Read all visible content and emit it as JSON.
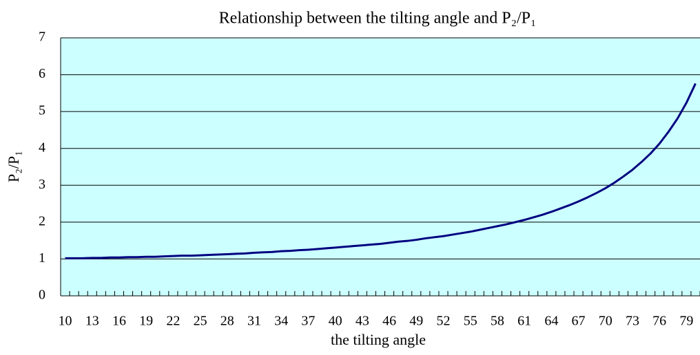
{
  "chart_data": {
    "type": "line",
    "title": "Relationship between the tilting angle and P₂/P₁",
    "x_label": "the tilting angle",
    "y_label": "P₂/P₁",
    "categories": [
      "10",
      null,
      null,
      "13",
      null,
      null,
      "16",
      null,
      null,
      "19",
      null,
      null,
      "22",
      null,
      null,
      "25",
      null,
      null,
      "28",
      null,
      null,
      "31",
      null,
      null,
      "34",
      null,
      null,
      "37",
      null,
      null,
      "40",
      null,
      null,
      "43",
      null,
      null,
      "46",
      null,
      null,
      "49",
      null,
      null,
      "52",
      null,
      null,
      "55",
      null,
      null,
      "58",
      null,
      null,
      "61",
      null,
      null,
      "64",
      null,
      null,
      "67",
      null,
      null,
      "70",
      null,
      null,
      "73",
      null,
      null,
      "76",
      null,
      null,
      "79",
      null
    ],
    "series": [
      {
        "name": "P₂/P₁",
        "color": "#000080",
        "values": [
          1.02,
          1.02,
          1.02,
          1.03,
          1.03,
          1.04,
          1.04,
          1.05,
          1.05,
          1.06,
          1.06,
          1.07,
          1.08,
          1.09,
          1.09,
          1.1,
          1.11,
          1.12,
          1.13,
          1.14,
          1.15,
          1.17,
          1.18,
          1.19,
          1.21,
          1.22,
          1.24,
          1.25,
          1.27,
          1.29,
          1.31,
          1.33,
          1.35,
          1.37,
          1.39,
          1.41,
          1.44,
          1.47,
          1.49,
          1.52,
          1.56,
          1.59,
          1.62,
          1.66,
          1.7,
          1.74,
          1.79,
          1.84,
          1.89,
          1.94,
          2.0,
          2.06,
          2.13,
          2.2,
          2.28,
          2.37,
          2.46,
          2.56,
          2.67,
          2.79,
          2.92,
          3.07,
          3.24,
          3.42,
          3.63,
          3.86,
          4.13,
          4.45,
          4.81,
          5.24,
          5.76
        ]
      }
    ],
    "ylim": [
      0,
      7
    ],
    "yticks": [
      0,
      1,
      2,
      3,
      4,
      5,
      6,
      7
    ],
    "grid": true,
    "plot_background": "#ccffff"
  }
}
